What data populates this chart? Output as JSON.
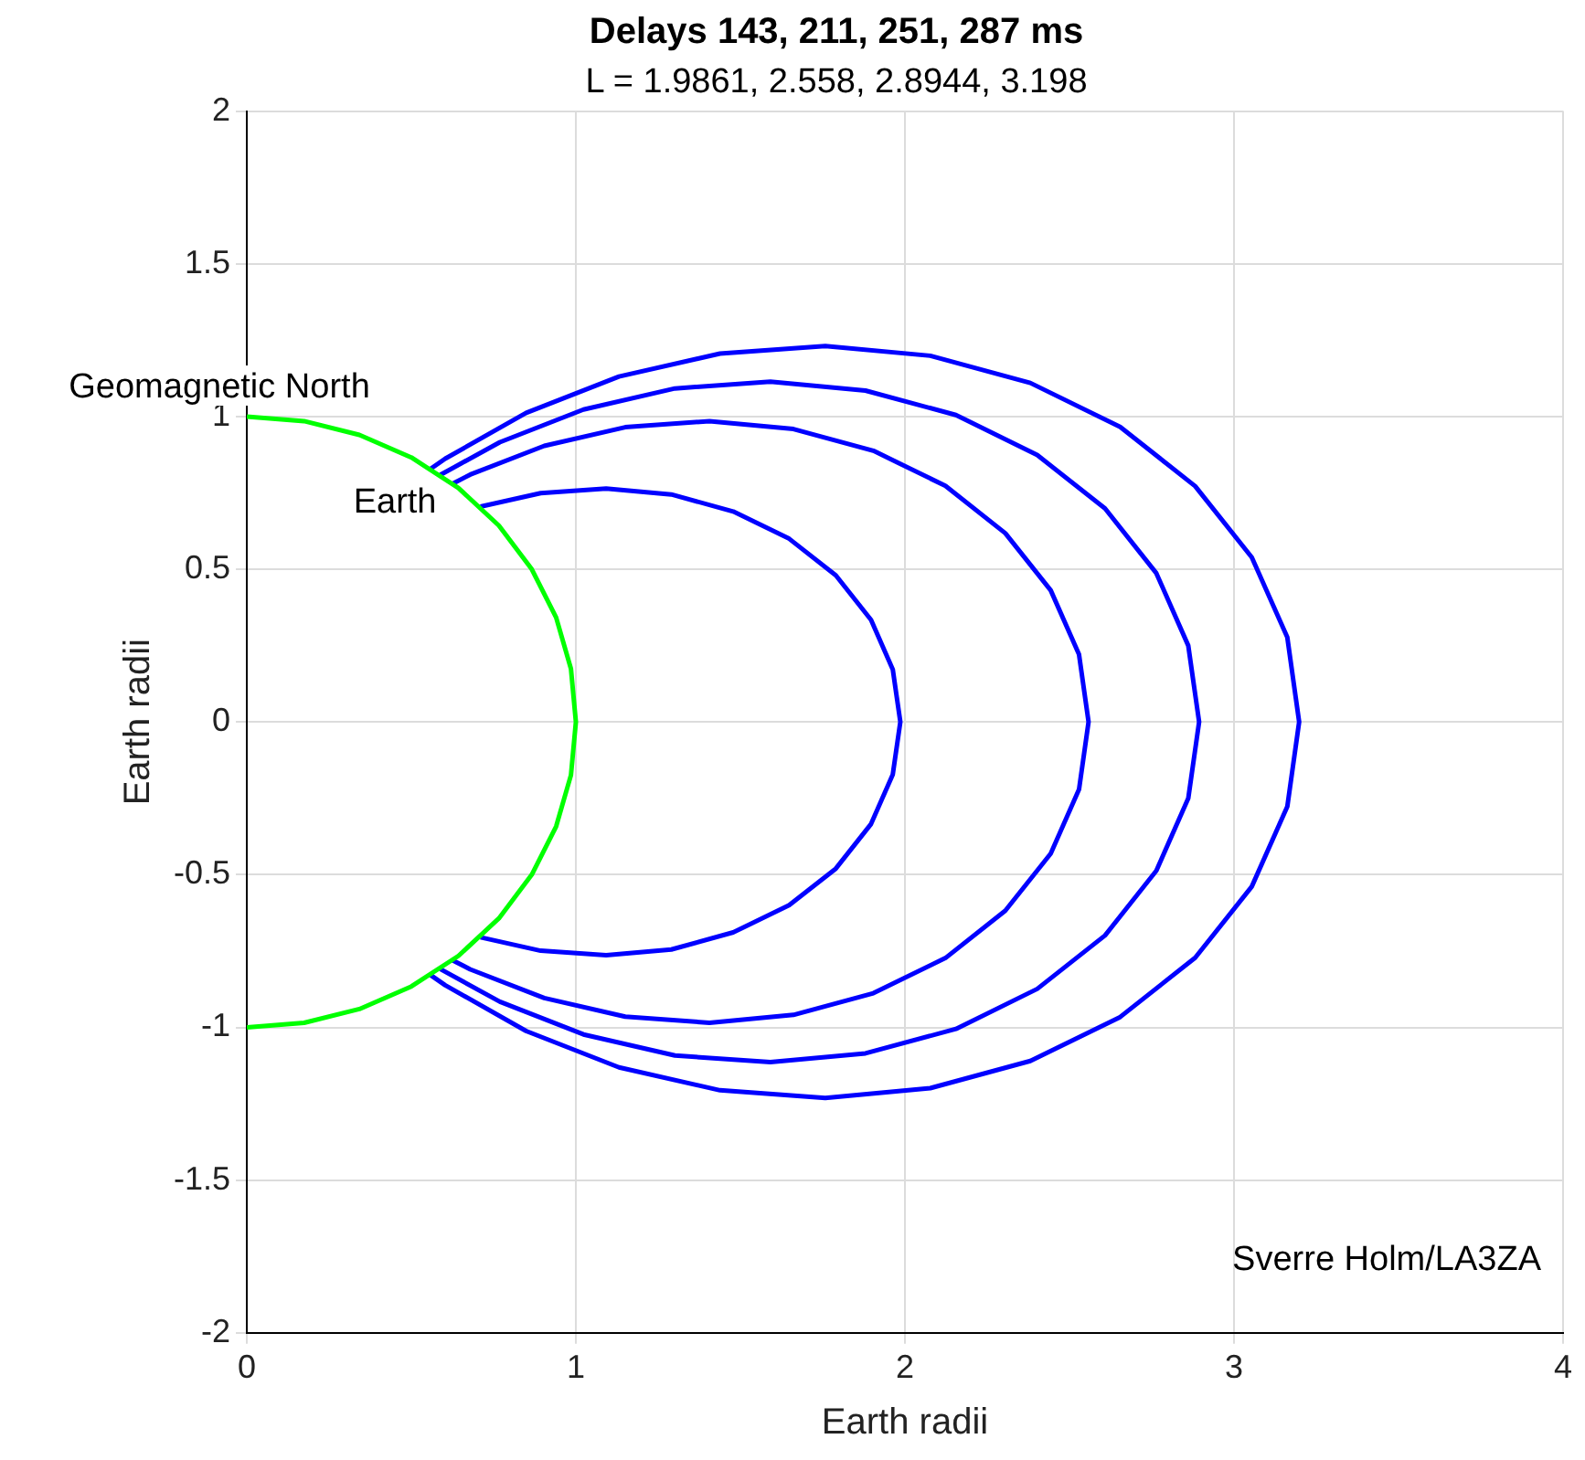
{
  "chart_data": {
    "type": "line",
    "title": "Delays 143, 211, 251, 287 ms",
    "subtitle": "L = 1.9861, 2.558, 2.8944, 3.198",
    "xlabel": "Earth radii",
    "ylabel": "Earth radii",
    "xlim": [
      0,
      4
    ],
    "xticks": [
      0,
      1,
      2,
      3,
      4
    ],
    "ylim": [
      -2,
      2
    ],
    "yticks": [
      -2,
      -1.5,
      -1,
      -0.5,
      0,
      0.5,
      1,
      1.5,
      2
    ],
    "grid": true,
    "legend": false,
    "marker": "none",
    "line_style": "solid",
    "series": [
      {
        "color": "#00ff00",
        "x": [
          0,
          0.174,
          0.342,
          0.5,
          0.643,
          0.766,
          0.866,
          0.94,
          0.985,
          1,
          0.985,
          0.94,
          0.866,
          0.766,
          0.643,
          0.5,
          0.342,
          0.174,
          0
        ],
        "values": [
          1,
          0.985,
          0.94,
          0.866,
          0.766,
          0.643,
          0.5,
          0.342,
          0.174,
          0,
          -0.174,
          -0.342,
          -0.5,
          -0.643,
          -0.766,
          -0.866,
          -0.94,
          -0.985,
          -1
        ]
      },
      {
        "color": "#0000ff",
        "x": [
          0.71,
          0.893,
          1.092,
          1.29,
          1.478,
          1.648,
          1.79,
          1.897,
          1.963,
          1.986,
          1.963,
          1.897,
          1.79,
          1.648,
          1.478,
          1.29,
          1.092,
          0.893,
          0.71
        ],
        "values": [
          0.705,
          0.749,
          0.764,
          0.745,
          0.689,
          0.6,
          0.48,
          0.334,
          0.172,
          0,
          -0.172,
          -0.334,
          -0.48,
          -0.6,
          -0.689,
          -0.745,
          -0.764,
          -0.749,
          -0.705
        ]
      },
      {
        "color": "#0000ff",
        "x": [
          0.625,
          0.679,
          0.904,
          1.15,
          1.406,
          1.661,
          1.904,
          2.123,
          2.305,
          2.443,
          2.529,
          2.558,
          2.529,
          2.443,
          2.305,
          2.123,
          1.904,
          1.661,
          1.406,
          1.15,
          0.904,
          0.679,
          0.625
        ],
        "values": [
          0.78,
          0.81,
          0.904,
          0.965,
          0.985,
          0.959,
          0.888,
          0.773,
          0.618,
          0.431,
          0.221,
          0,
          -0.221,
          -0.431,
          -0.618,
          -0.773,
          -0.888,
          -0.959,
          -0.985,
          -0.965,
          -0.904,
          -0.81,
          -0.78
        ]
      },
      {
        "color": "#0000ff",
        "x": [
          0.588,
          0.769,
          1.023,
          1.301,
          1.591,
          1.88,
          2.155,
          2.402,
          2.608,
          2.764,
          2.861,
          2.894,
          2.861,
          2.764,
          2.608,
          2.402,
          2.155,
          1.88,
          1.591,
          1.301,
          1.023,
          0.769,
          0.588
        ],
        "values": [
          0.809,
          0.916,
          1.023,
          1.092,
          1.114,
          1.085,
          1.005,
          0.874,
          0.699,
          0.487,
          0.25,
          0,
          -0.25,
          -0.487,
          -0.699,
          -0.874,
          -1.005,
          -1.085,
          -1.114,
          -1.092,
          -1.023,
          -0.916,
          -0.809
        ]
      },
      {
        "color": "#0000ff",
        "x": [
          0.559,
          0.603,
          0.849,
          1.131,
          1.438,
          1.758,
          2.077,
          2.381,
          2.654,
          2.882,
          3.054,
          3.162,
          3.198,
          3.162,
          3.054,
          2.882,
          2.654,
          2.381,
          2.077,
          1.758,
          1.438,
          1.131,
          0.849,
          0.603,
          0.559
        ],
        "values": [
          0.829,
          0.862,
          1.012,
          1.131,
          1.206,
          1.231,
          1.199,
          1.11,
          0.966,
          0.772,
          0.539,
          0.277,
          0,
          -0.277,
          -0.539,
          -0.772,
          -0.966,
          -1.11,
          -1.199,
          -1.231,
          -1.206,
          -1.131,
          -1.012,
          -0.862,
          -0.829
        ]
      }
    ],
    "annotations": [
      {
        "text": "Geomagnetic North",
        "x": 0,
        "y": 1
      },
      {
        "text": "Earth",
        "x": 0.643,
        "y": 0.766
      },
      "Sverre Holm/LA3ZA"
    ]
  }
}
